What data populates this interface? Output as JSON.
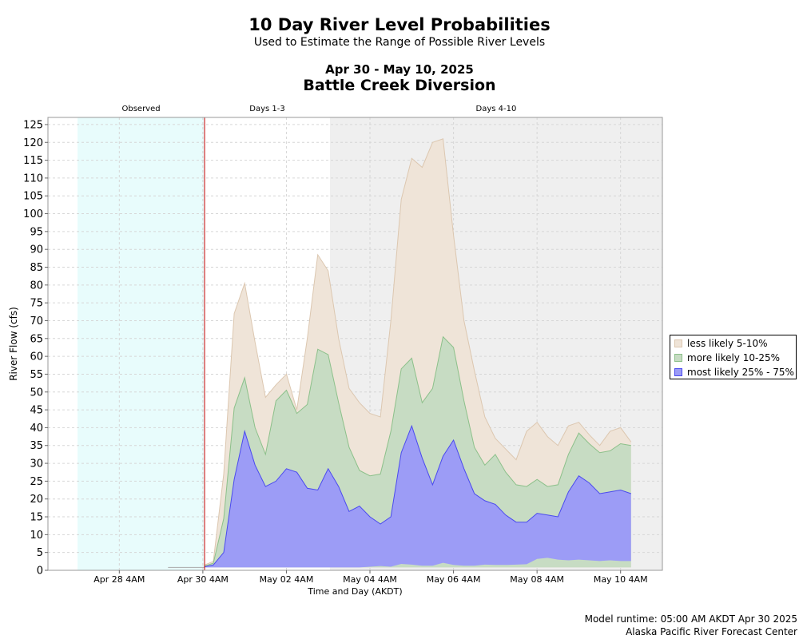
{
  "header": {
    "title": "10 Day River Level Probabilities",
    "subtitle": "Used to Estimate the Range of Possible River Levels",
    "date_range": "Apr 30 - May 10, 2025",
    "station": "Battle Creek Diversion"
  },
  "footer": {
    "model_runtime": "Model runtime: 05:00 AM AKDT Apr 30 2025",
    "center": "Alaska Pacific River Forecast Center"
  },
  "colors": {
    "observed_bg": "#e8fcfc",
    "days4_10_bg": "#efefef",
    "less_likely": "#efe4d8",
    "less_likely_border": "#dcc7b0",
    "more_likely": "#c7dcc3",
    "more_likely_border": "#8cc08a",
    "most_likely": "#9c9cf6",
    "most_likely_border": "#4a4aee",
    "now_line": "#c80000"
  },
  "chart_data": {
    "type": "area",
    "xlabel": "Time and Day (AKDT)",
    "ylabel": "River Flow (cfs)",
    "ylim": [
      0,
      127
    ],
    "y_ticks": [
      0,
      5,
      10,
      15,
      20,
      25,
      30,
      35,
      40,
      45,
      50,
      55,
      60,
      65,
      70,
      75,
      80,
      85,
      90,
      95,
      100,
      105,
      110,
      115,
      120,
      125
    ],
    "x_tick_labels": [
      "Apr 28 4AM",
      "Apr 30 4AM",
      "May 02 4AM",
      "May 04 4AM",
      "May 06 4AM",
      "May 08 4AM",
      "May 10 4AM"
    ],
    "x_ticks_hours": [
      24,
      72,
      120,
      168,
      216,
      264,
      312
    ],
    "x_range_hours": [
      -17,
      336
    ],
    "grid": true,
    "legend_position": "right",
    "now_hours": 73,
    "regions": [
      {
        "label": "Observed",
        "start": 0,
        "end": 73
      },
      {
        "label": "Days 1-3",
        "start": 73,
        "end": 145
      },
      {
        "label": "Days 4-10",
        "start": 145,
        "end": 336
      }
    ],
    "observed_line": {
      "x": [
        52,
        73
      ],
      "y": [
        0.8,
        0.8
      ]
    },
    "x": [
      73,
      78,
      84,
      90,
      96,
      102,
      108,
      114,
      120,
      126,
      132,
      138,
      144,
      150,
      156,
      162,
      168,
      174,
      180,
      186,
      192,
      198,
      204,
      210,
      216,
      222,
      228,
      234,
      240,
      246,
      252,
      258,
      264,
      270,
      276,
      282,
      288,
      294,
      300,
      306,
      312,
      318
    ],
    "series": [
      {
        "name": "less likely 5-10%",
        "lower": [
          0.8,
          0.8,
          0.8,
          0.8,
          0.8,
          0.8,
          0.8,
          0.8,
          0.8,
          0.8,
          0.8,
          0.8,
          0.8,
          0.8,
          0.8,
          0.8,
          0.8,
          0.8,
          0.8,
          0.8,
          0.8,
          0.8,
          0.8,
          0.8,
          0.8,
          0.8,
          0.8,
          0.8,
          0.8,
          0.8,
          0.8,
          0.8,
          0.8,
          0.8,
          0.8,
          0.8,
          0.8,
          0.8,
          0.8,
          0.8,
          0.8,
          0.8
        ],
        "upper": [
          1.5,
          2.5,
          27,
          72,
          80.5,
          64,
          48.5,
          52,
          55,
          45,
          65,
          88.5,
          84,
          65,
          51,
          47,
          44,
          43,
          70,
          104,
          115.5,
          113,
          120,
          121,
          94,
          70,
          56,
          43,
          37,
          34,
          31,
          39,
          41.5,
          37.5,
          35,
          40.5,
          41.5,
          38,
          35,
          39,
          40,
          36
        ]
      },
      {
        "name": "more likely 10-25%",
        "lower": [
          0.8,
          0.8,
          0.8,
          0.8,
          0.8,
          0.8,
          0.8,
          0.8,
          0.8,
          0.8,
          0.8,
          0.8,
          0.8,
          0.8,
          0.8,
          0.8,
          0.8,
          0.8,
          0.8,
          0.8,
          0.8,
          0.8,
          0.8,
          0.8,
          0.8,
          0.8,
          0.8,
          0.8,
          0.8,
          0.8,
          0.8,
          0.8,
          0.8,
          0.8,
          0.8,
          0.8,
          0.8,
          0.8,
          0.8,
          0.8,
          0.8,
          0.8
        ],
        "upper": [
          1.2,
          2,
          14.5,
          45.5,
          54,
          40,
          32.5,
          47.5,
          50.5,
          44,
          46.5,
          62,
          60.5,
          47,
          34.5,
          28,
          26.5,
          27,
          39,
          56.5,
          59.5,
          47,
          51,
          65.5,
          62.5,
          47.5,
          34.5,
          29.5,
          32.5,
          27.5,
          24,
          23.5,
          25.5,
          23.5,
          24,
          32.5,
          38.5,
          35.5,
          33,
          33.5,
          35.5,
          35
        ]
      },
      {
        "name": "most likely 25% - 75%",
        "lower": [
          0.8,
          0.8,
          0.8,
          0.8,
          0.8,
          0.8,
          0.8,
          0.8,
          0.8,
          0.8,
          0.8,
          0.8,
          0.8,
          0.8,
          0.8,
          0.8,
          1,
          1.2,
          1,
          1.8,
          1.6,
          1.3,
          1.3,
          2.1,
          1.5,
          1.3,
          1.3,
          1.6,
          1.5,
          1.5,
          1.6,
          1.7,
          3.2,
          3.5,
          3,
          2.8,
          3,
          2.8,
          2.6,
          2.8,
          2.6,
          2.6
        ],
        "upper": [
          1,
          1.5,
          5,
          25.5,
          39,
          29.5,
          23.5,
          25,
          28.5,
          27.5,
          23,
          22.5,
          28.5,
          23.5,
          16.5,
          18,
          15,
          13,
          15,
          33,
          40.5,
          31.5,
          24,
          32,
          36.5,
          28.5,
          21.5,
          19.5,
          18.5,
          15.5,
          13.5,
          13.5,
          16,
          15.5,
          15,
          22,
          26.5,
          24.5,
          21.5,
          22,
          22.5,
          21.5
        ]
      }
    ]
  }
}
